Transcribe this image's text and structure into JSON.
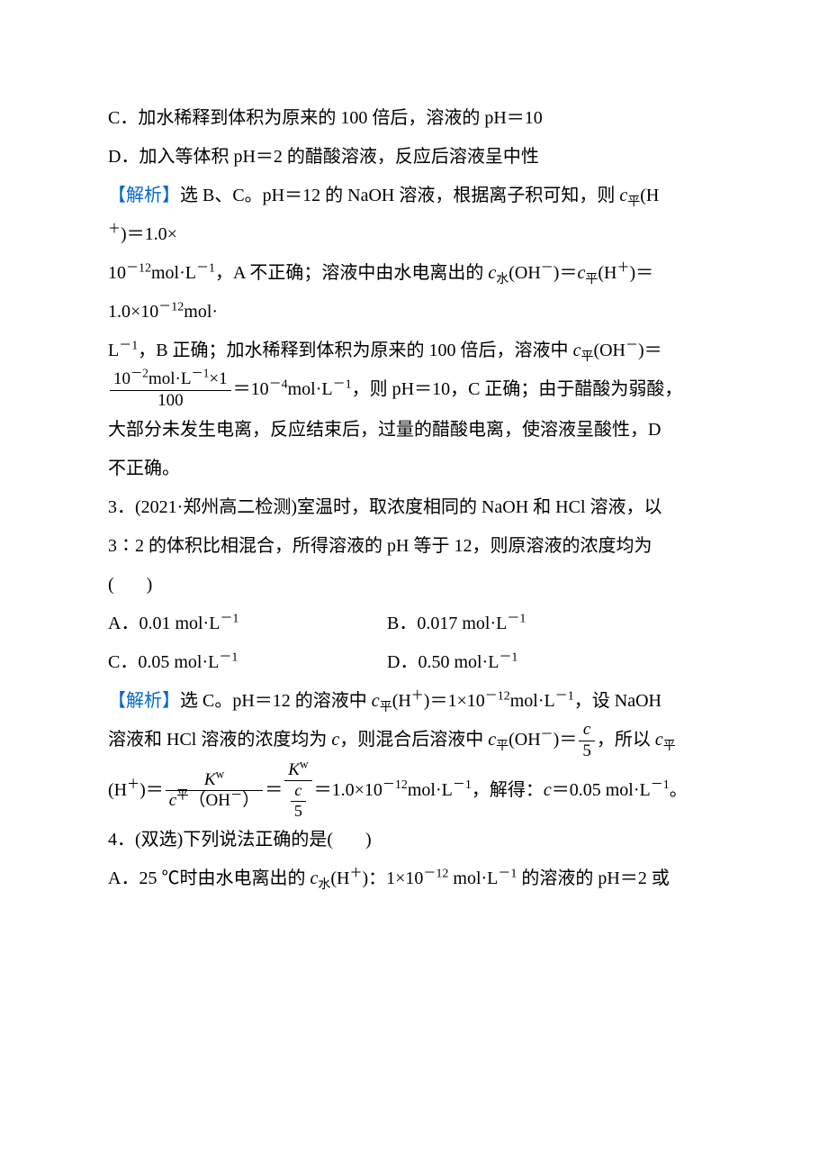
{
  "colors": {
    "text": "#000000",
    "analysis_label": "#0066cc",
    "background": "#ffffff"
  },
  "typography": {
    "body_fontsize_pt": 15,
    "line_height": 2.15,
    "font_family_cjk": "SimSun",
    "font_family_latin": "Times New Roman"
  },
  "q2_tail": {
    "optC": "C．加水稀释到体积为原来的 100 倍后，溶液的 pH＝10",
    "optD": "D．加入等体积 pH＝2 的醋酸溶液，反应后溶液呈中性",
    "analysis_label": "【解析】",
    "ana_1a": "选 B、C。pH＝12 的 NaOH 溶液，根据离子积可知，则 ",
    "ana_1b": "(H",
    "ana_1c": ")＝1.0×",
    "ana_2a": "10",
    "ana_2b": "mol·L",
    "ana_2c": "，A 不正确；溶液中由水电离出的 ",
    "ana_2d": "(OH",
    "ana_2e": ")＝",
    "ana_2f": "(H",
    "ana_2g": ")＝",
    "ana_3a": "1.0×10",
    "ana_3b": "mol·",
    "ana_4a": "L",
    "ana_4b": "，B 正确；加水稀释到体积为原来的 100 倍后，溶液中 ",
    "ana_4c": "(OH",
    "ana_4d": ")＝",
    "frac1_num_a": "10",
    "frac1_num_b": "mol·L",
    "frac1_num_c": "×1",
    "frac1_den": "100",
    "ana_5a": "＝10",
    "ana_5b": "mol·L",
    "ana_5c": "，则 pH＝10，C 正确；由于醋酸为弱酸，",
    "ana_6": "大部分未发生电离，反应结束后，过量的醋酸电离，使溶液呈酸性，D",
    "ana_7": "不正确。"
  },
  "q3": {
    "stem1": "3．(2021·郑州高二检测)室温时，取浓度相同的 NaOH 和 HCl 溶液，以",
    "stem2": "3∶2 的体积比相混合，所得溶液的 pH 等于 12，则原溶液的浓度均为",
    "stem3a": "(",
    "stem3b": ")",
    "optA": "A．0.01 mol·L",
    "optB": "B．0.017 mol·L",
    "optC": "C．0.05 mol·L",
    "optD": "D．0.50 mol·L",
    "analysis_label": "【解析】",
    "ana_1a": "选 C。pH＝12 的溶液中 ",
    "ana_1b": "(H",
    "ana_1c": ")＝1×10",
    "ana_1d": "mol·L",
    "ana_1e": "，设 NaOH",
    "ana_2a": "溶液和 HCl 溶液的浓度均为 ",
    "ana_2b": "，则混合后溶液中 ",
    "ana_2c": "(OH",
    "ana_2d": ")＝",
    "frac_c5_num": "c",
    "frac_c5_den": "5",
    "ana_2e": "，所以 ",
    "ana_3a": "(H",
    "ana_3b": ")＝",
    "frac_kw1_num": "K",
    "frac_kw1_den_a": "c",
    "frac_kw1_den_b": "（OH",
    "frac_kw1_den_c": "）",
    "frac_kw2_num": "K",
    "ana_3c": "＝",
    "ana_3d": "＝1.0×10",
    "ana_3e": "mol·L",
    "ana_3f": "，解得：",
    "ana_3g": "＝0.05 mol·L",
    "ana_3h": "。"
  },
  "q4": {
    "stem": "4．(双选)下列说法正确的是(",
    "stem_end": ")",
    "optA_a": "A．25 ℃时由水电离出的 ",
    "optA_b": "(H",
    "optA_c": ")：1×10",
    "optA_d": " mol·L",
    "optA_e": " 的溶液的 pH＝2 或"
  },
  "symbols": {
    "c": "c",
    "K": "K",
    "ping": "平",
    "shui": "水",
    "w": "w",
    "minus1": "－1",
    "minus2": "－2",
    "minus4": "－4",
    "minus12": "－12",
    "plus": "＋",
    "minus": "－"
  }
}
